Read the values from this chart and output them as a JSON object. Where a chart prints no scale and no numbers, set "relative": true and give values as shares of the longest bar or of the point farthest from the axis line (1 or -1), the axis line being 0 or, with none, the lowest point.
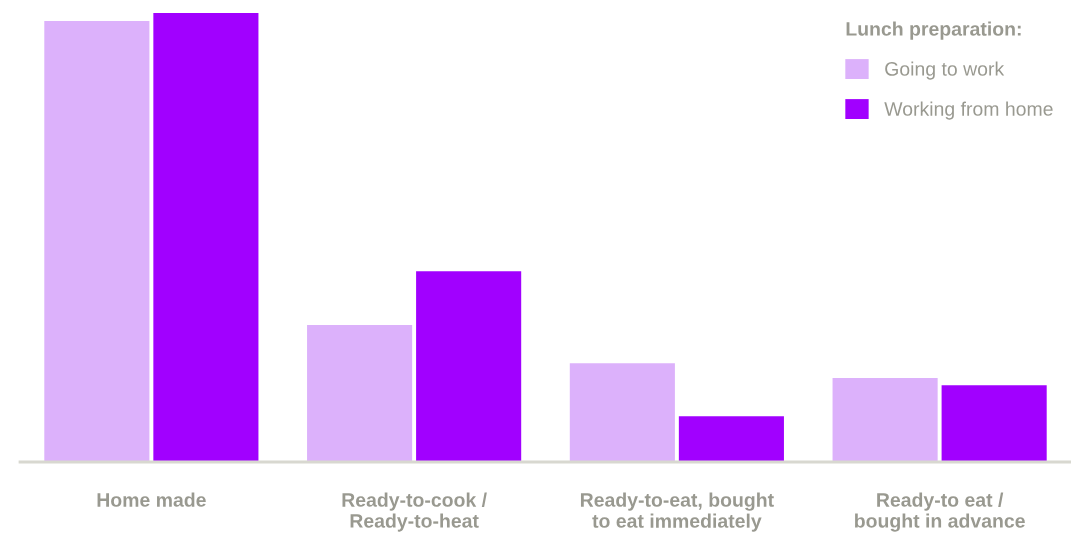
{
  "chart_data": {
    "type": "bar",
    "relative": true,
    "legend_title": "Lunch preparation:",
    "legend": "top right",
    "grid": false,
    "categories": [
      "Home made",
      "Ready-to-cook /\nReady-to-heat",
      "Ready-to-eat, bought\nto eat immediately",
      "Ready-to eat /\nbought in advance"
    ],
    "series": [
      {
        "name": "Going to work",
        "color": "#dcb1fb",
        "values": [
          0.982,
          0.305,
          0.22,
          0.187
        ]
      },
      {
        "name": "Working from home",
        "color": "#a100ff",
        "values": [
          1,
          0.425,
          0.102,
          0.171
        ]
      }
    ]
  }
}
